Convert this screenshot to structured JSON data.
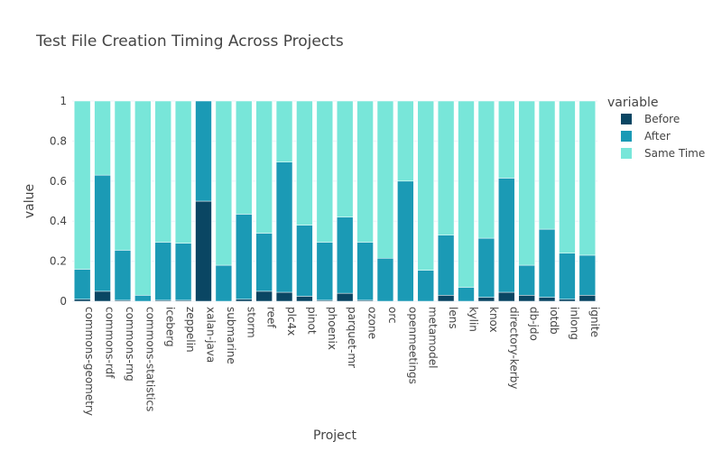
{
  "chart_data": {
    "type": "bar",
    "stacked": true,
    "title": "Test File Creation Timing Across Projects",
    "xlabel": "Project",
    "ylabel": "value",
    "ylim": [
      0,
      1
    ],
    "yticks": [
      "0",
      "0.2",
      "0.4",
      "0.6",
      "0.8",
      "1"
    ],
    "grid": true,
    "legend_position": "right",
    "legend_title": "variable",
    "categories": [
      "commons-geometry",
      "commons-rdf",
      "commons-rng",
      "commons-statistics",
      "iceberg",
      "zeppelin",
      "xalan-java",
      "submarine",
      "storm",
      "reef",
      "plc4x",
      "pinot",
      "phoenix",
      "parquet-mr",
      "ozone",
      "orc",
      "openmeetings",
      "metamodel",
      "lens",
      "kylin",
      "knox",
      "directory-kerby",
      "db-jdo",
      "iotdb",
      "inlong",
      "ignite"
    ],
    "series": [
      {
        "name": "Before",
        "color": "#0a4663",
        "values": [
          0.01,
          0.05,
          0.005,
          0,
          0.005,
          0.005,
          0.5,
          0,
          0.01,
          0.05,
          0.045,
          0.025,
          0.005,
          0.04,
          0.005,
          0,
          0,
          0,
          0.03,
          0,
          0.02,
          0.045,
          0.03,
          0.02,
          0.01,
          0.03
        ]
      },
      {
        "name": "After",
        "color": "#1b9ab5",
        "values": [
          0.15,
          0.58,
          0.25,
          0.03,
          0.29,
          0.285,
          0.5,
          0.18,
          0.425,
          0.29,
          0.65,
          0.355,
          0.29,
          0.38,
          0.29,
          0.215,
          0.6,
          0.155,
          0.3,
          0.07,
          0.295,
          0.57,
          0.15,
          0.34,
          0.23,
          0.2
        ]
      },
      {
        "name": "Same Time",
        "color": "#78e6d9",
        "values": [
          0.84,
          0.37,
          0.745,
          0.97,
          0.705,
          0.71,
          0,
          0.82,
          0.565,
          0.66,
          0.305,
          0.62,
          0.705,
          0.58,
          0.705,
          0.785,
          0.4,
          0.845,
          0.67,
          0.93,
          0.685,
          0.385,
          0.82,
          0.64,
          0.76,
          0.77
        ]
      }
    ]
  }
}
